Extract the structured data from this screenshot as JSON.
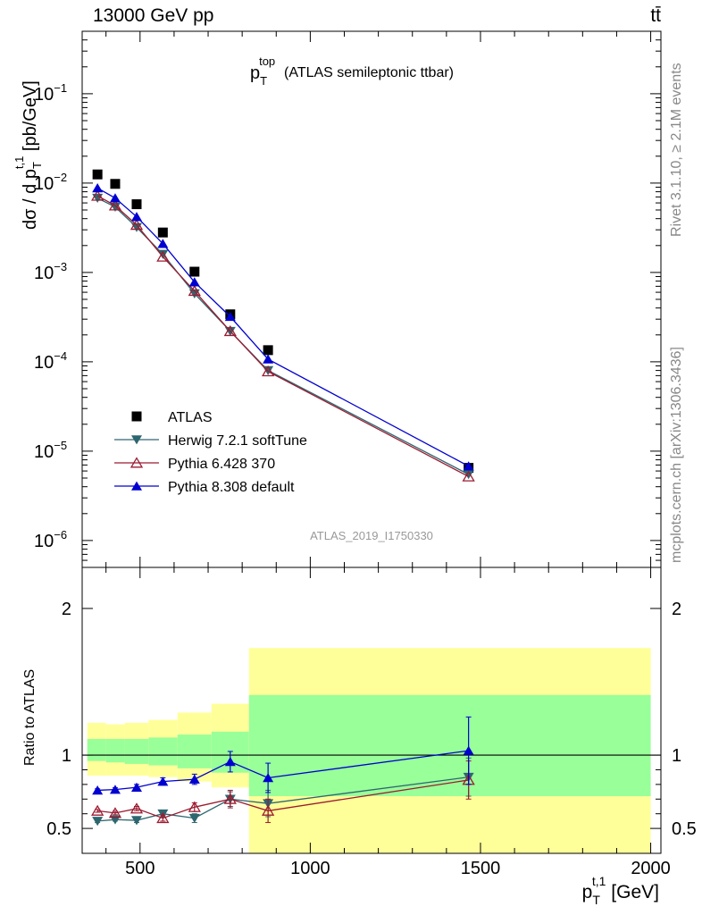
{
  "header": {
    "energy": "13000 GeV pp",
    "process": "tt̄"
  },
  "side_labels": {
    "rivet": "Rivet 3.1.10, ≥ 2.1M events",
    "mcplots": "mcplots.cern.ch [arXiv:1306.3436]"
  },
  "analysis_id": "ATLAS_2019_I1750330",
  "chart_data": [
    {
      "type": "scatter",
      "panel": "main",
      "title_base": "p",
      "title_sub": "T",
      "title_sup": "top",
      "title_rest": "(ATLAS semileptonic ttbar)",
      "ylabel": "dσ / d p T t,1 [pb/GeV]",
      "ylabel_parts": {
        "a": "dσ / d p",
        "sub": "T",
        "sup": "t,1",
        "b": " [pb/GeV]"
      },
      "yscale": "log",
      "ylim": [
        5e-07,
        0.5
      ],
      "xlim": [
        330,
        2030
      ],
      "y_ticks": [
        {
          "v": 0.1,
          "base": "10",
          "exp": "−1"
        },
        {
          "v": 0.01,
          "base": "10",
          "exp": "−2"
        },
        {
          "v": 0.001,
          "base": "10",
          "exp": "−3"
        },
        {
          "v": 0.0001,
          "base": "10",
          "exp": "−4"
        },
        {
          "v": 1e-05,
          "base": "10",
          "exp": "−5"
        },
        {
          "v": 1e-06,
          "base": "10",
          "exp": "−6"
        }
      ],
      "legend_position": "lower-left",
      "series": [
        {
          "name": "ATLAS",
          "marker": "square",
          "color": "#000000",
          "x": [
            375,
            427,
            490,
            567,
            660,
            765,
            876,
            1465
          ],
          "y": [
            0.0125,
            0.0098,
            0.0058,
            0.0028,
            0.00102,
            0.00034,
            0.000135,
            6.5e-06
          ]
        },
        {
          "name": "Herwig 7.2.1 softTune",
          "marker": "triangle-down",
          "color": "#2e6670",
          "x": [
            375,
            427,
            490,
            567,
            660,
            765,
            876,
            1465
          ],
          "y": [
            0.0068,
            0.0054,
            0.0032,
            0.0016,
            0.00058,
            0.00022,
            8e-05,
            5.5e-06
          ]
        },
        {
          "name": "Pythia 6.428 370",
          "marker": "triangle-open",
          "color": "#9b1b30",
          "x": [
            375,
            427,
            490,
            567,
            660,
            765,
            876,
            1465
          ],
          "y": [
            0.0072,
            0.0056,
            0.0034,
            0.0015,
            0.00062,
            0.00022,
            7.8e-05,
            5.2e-06
          ]
        },
        {
          "name": "Pythia 8.308 default",
          "marker": "triangle-up",
          "color": "#0000d0",
          "x": [
            375,
            427,
            490,
            567,
            660,
            765,
            876,
            1465
          ],
          "y": [
            0.0088,
            0.0068,
            0.0042,
            0.0021,
            0.00078,
            0.00032,
            0.000107,
            6.8e-06
          ]
        }
      ]
    },
    {
      "type": "line",
      "panel": "ratio",
      "ylabel": "Ratio to ATLAS",
      "xlabel": "p T t,1 [GeV]",
      "xlabel_parts": {
        "a": "p",
        "sub": "T",
        "sup": "t,1",
        "b": " [GeV]"
      },
      "ylim": [
        0.33,
        2.28
      ],
      "xlim": [
        330,
        2030
      ],
      "x_ticks": [
        500,
        1000,
        1500,
        2000
      ],
      "y_ticks": [
        0.5,
        1,
        2
      ],
      "reference_line": 1,
      "bands": {
        "edges": [
          345,
          400,
          455,
          525,
          610,
          710,
          820,
          2000
        ],
        "green_lo": [
          0.96,
          0.95,
          0.94,
          0.93,
          0.91,
          0.88,
          0.72
        ],
        "green_hi": [
          1.11,
          1.11,
          1.11,
          1.12,
          1.14,
          1.16,
          1.41
        ],
        "yellow_lo": [
          0.86,
          0.86,
          0.86,
          0.85,
          0.82,
          0.78,
          0.0
        ],
        "yellow_hi": [
          1.22,
          1.21,
          1.22,
          1.24,
          1.29,
          1.35,
          1.73
        ]
      },
      "series": [
        {
          "name": "Herwig 7.2.1 softTune",
          "marker": "triangle-down",
          "color": "#2e6670",
          "x": [
            375,
            427,
            490,
            567,
            660,
            765,
            876,
            1465
          ],
          "y": [
            0.55,
            0.56,
            0.555,
            0.6,
            0.57,
            0.7,
            0.67,
            0.85
          ],
          "err": [
            0.01,
            0.01,
            0.015,
            0.02,
            0.03,
            0.05,
            0.09,
            0.13
          ]
        },
        {
          "name": "Pythia 6.428 370",
          "marker": "triangle-open",
          "color": "#9b1b30",
          "x": [
            375,
            427,
            490,
            567,
            660,
            765,
            876,
            1465
          ],
          "y": [
            0.62,
            0.605,
            0.635,
            0.57,
            0.645,
            0.7,
            0.62,
            0.83
          ],
          "err": [
            0.01,
            0.012,
            0.015,
            0.02,
            0.03,
            0.06,
            0.08,
            0.13
          ]
        },
        {
          "name": "Pythia 8.308 default",
          "marker": "triangle-up",
          "color": "#0000d0",
          "x": [
            375,
            427,
            490,
            567,
            660,
            765,
            876,
            1465
          ],
          "y": [
            0.76,
            0.765,
            0.78,
            0.82,
            0.835,
            0.955,
            0.845,
            1.03
          ],
          "err": [
            0.01,
            0.012,
            0.02,
            0.025,
            0.035,
            0.07,
            0.1,
            0.23
          ]
        }
      ]
    }
  ]
}
